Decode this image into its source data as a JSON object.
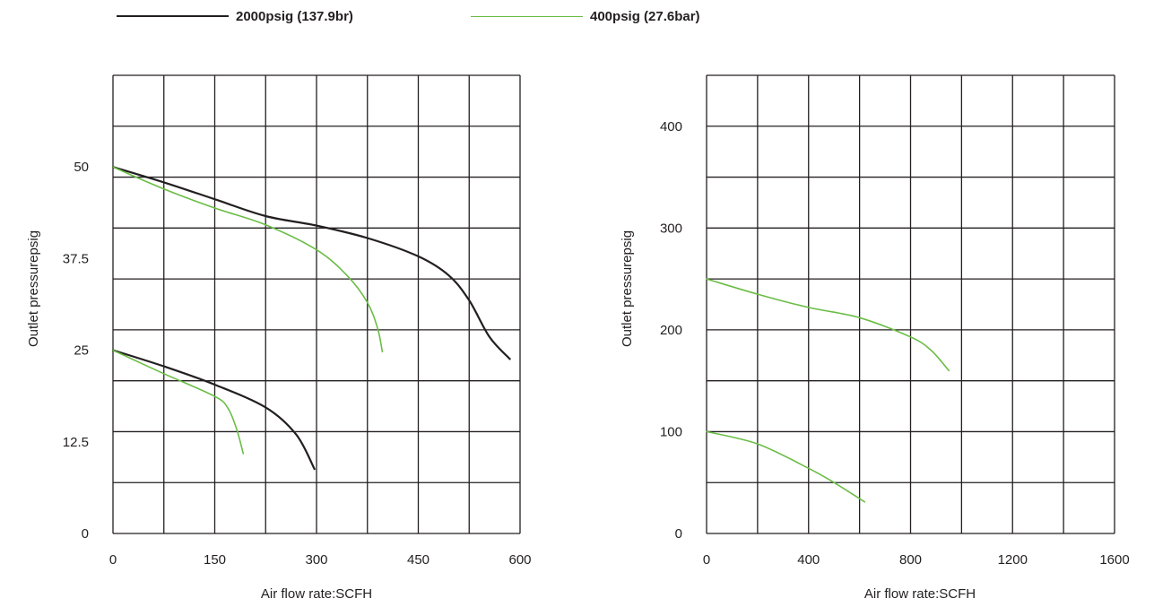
{
  "legend": [
    {
      "label": "2000psig (137.9br)",
      "color": "#231f20"
    },
    {
      "label": "400psig (27.6bar)",
      "color": "#6abd45"
    }
  ],
  "chart_data": [
    {
      "type": "line",
      "xlabel": "Air flow rate:SCFH",
      "ylabel": "Outlet pressurepsig",
      "xlim": [
        0,
        600
      ],
      "ylim": [
        0,
        62.5
      ],
      "x_ticks": [
        "0",
        "150",
        "300",
        "450",
        "600"
      ],
      "y_ticks": [
        "0",
        "12.5",
        "25",
        "37.5",
        "50"
      ],
      "grid": true,
      "series": [
        {
          "name": "2000psig (137.9br)",
          "color": "#231f20",
          "x": [
            0,
            75,
            150,
            225,
            300,
            375,
            450,
            495,
            525,
            555,
            585
          ],
          "y": [
            50,
            47.9,
            45.6,
            43.3,
            42,
            40.3,
            37.8,
            35.2,
            31.8,
            26.8,
            23.8
          ]
        },
        {
          "name": "400psig (27.6bar)",
          "color": "#6abd45",
          "x": [
            0,
            75,
            150,
            225,
            300,
            345,
            375,
            390,
            397
          ],
          "y": [
            50,
            47,
            44.4,
            42.1,
            38.7,
            35.2,
            31.5,
            28,
            24.8
          ]
        },
        {
          "name": "2000psig (137.9br)",
          "color": "#231f20",
          "x": [
            0,
            75,
            150,
            225,
            270,
            297
          ],
          "y": [
            25,
            22.8,
            20.3,
            17.2,
            13.5,
            8.8
          ]
        },
        {
          "name": "400psig (27.6bar)",
          "color": "#6abd45",
          "x": [
            0,
            75,
            150,
            170,
            183,
            192
          ],
          "y": [
            25,
            21.8,
            18.7,
            17,
            14,
            10.9
          ]
        }
      ]
    },
    {
      "type": "line",
      "xlabel": "Air flow rate:SCFH",
      "ylabel": "Outlet pressurepsig",
      "xlim": [
        0,
        1600
      ],
      "ylim": [
        0,
        450
      ],
      "x_ticks": [
        "0",
        "400",
        "800",
        "1200",
        "1600"
      ],
      "y_ticks": [
        "0",
        "100",
        "200",
        "300",
        "400"
      ],
      "grid": true,
      "series": [
        {
          "name": "400psig (27.6bar)",
          "color": "#6abd45",
          "x": [
            0,
            200,
            400,
            600,
            800,
            880,
            950
          ],
          "y": [
            250,
            235,
            222,
            212,
            193,
            180,
            160
          ]
        },
        {
          "name": "400psig (27.6bar)",
          "color": "#6abd45",
          "x": [
            0,
            200,
            400,
            500,
            620
          ],
          "y": [
            100,
            88,
            64,
            50,
            31
          ]
        }
      ]
    }
  ]
}
